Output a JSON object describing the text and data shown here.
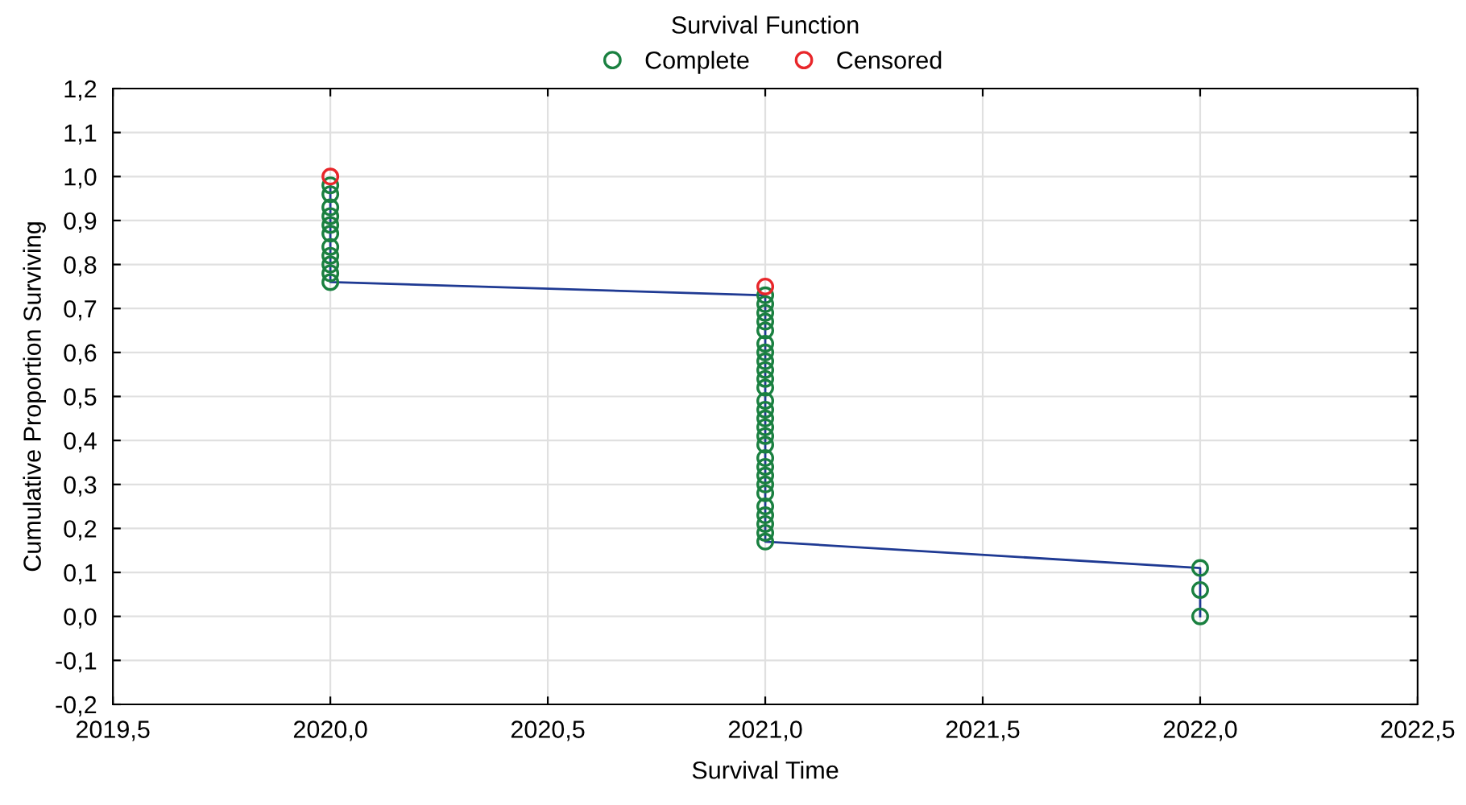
{
  "chart_data": {
    "type": "scatter",
    "xlabel": "Survival Time",
    "ylabel": "Cumulative Proportion Surviving",
    "legend_title": "Survival Function",
    "legend": "top",
    "grid": true,
    "marker": "circle",
    "xlim": [
      2019.5,
      2022.5
    ],
    "xticks": [
      {
        "value": 2019.5,
        "label": "2019,5"
      },
      {
        "value": 2020.0,
        "label": "2020,0"
      },
      {
        "value": 2020.5,
        "label": "2020,5"
      },
      {
        "value": 2021.0,
        "label": "2021,0"
      },
      {
        "value": 2021.5,
        "label": "2021,5"
      },
      {
        "value": 2022.0,
        "label": "2022,0"
      },
      {
        "value": 2022.5,
        "label": "2022,5"
      }
    ],
    "ylim": [
      -0.2,
      1.2
    ],
    "yticks": [
      {
        "value": -0.2,
        "label": "-0,2"
      },
      {
        "value": -0.1,
        "label": "-0,1"
      },
      {
        "value": 0.0,
        "label": "0,0"
      },
      {
        "value": 0.1,
        "label": "0,1"
      },
      {
        "value": 0.2,
        "label": "0,2"
      },
      {
        "value": 0.3,
        "label": "0,3"
      },
      {
        "value": 0.4,
        "label": "0,4"
      },
      {
        "value": 0.5,
        "label": "0,5"
      },
      {
        "value": 0.6,
        "label": "0,6"
      },
      {
        "value": 0.7,
        "label": "0,7"
      },
      {
        "value": 0.8,
        "label": "0,8"
      },
      {
        "value": 0.9,
        "label": "0,9"
      },
      {
        "value": 1.0,
        "label": "1,0"
      },
      {
        "value": 1.1,
        "label": "1,1"
      },
      {
        "value": 1.2,
        "label": "1,2"
      }
    ],
    "series": [
      {
        "type": "line",
        "color": "#1f3a93",
        "marker": "none",
        "x": [
          2020,
          2020,
          2021,
          2021,
          2022,
          2022
        ],
        "values": [
          0.98,
          0.76,
          0.73,
          0.17,
          0.11,
          0.0
        ]
      },
      {
        "name": "Complete",
        "color": "#1a8040",
        "x": [
          2020,
          2020,
          2020,
          2020,
          2020,
          2020,
          2020,
          2020,
          2020,
          2020,
          2020,
          2021,
          2021,
          2021,
          2021,
          2021,
          2021,
          2021,
          2021,
          2021,
          2021,
          2021,
          2021,
          2021,
          2021,
          2021,
          2021,
          2021,
          2021,
          2021,
          2021,
          2021,
          2021,
          2021,
          2021,
          2021,
          2021,
          2021,
          2022,
          2022,
          2022
        ],
        "values": [
          0.98,
          0.96,
          0.93,
          0.91,
          0.89,
          0.87,
          0.84,
          0.82,
          0.8,
          0.78,
          0.76,
          0.73,
          0.71,
          0.69,
          0.67,
          0.65,
          0.62,
          0.6,
          0.58,
          0.56,
          0.54,
          0.52,
          0.49,
          0.47,
          0.45,
          0.43,
          0.41,
          0.39,
          0.36,
          0.34,
          0.32,
          0.3,
          0.28,
          0.25,
          0.23,
          0.21,
          0.19,
          0.17,
          0.11,
          0.06,
          0.0
        ]
      },
      {
        "name": "Censored",
        "color": "#e8262a",
        "x": [
          2020,
          2021
        ],
        "values": [
          1.0,
          0.75
        ]
      }
    ]
  }
}
